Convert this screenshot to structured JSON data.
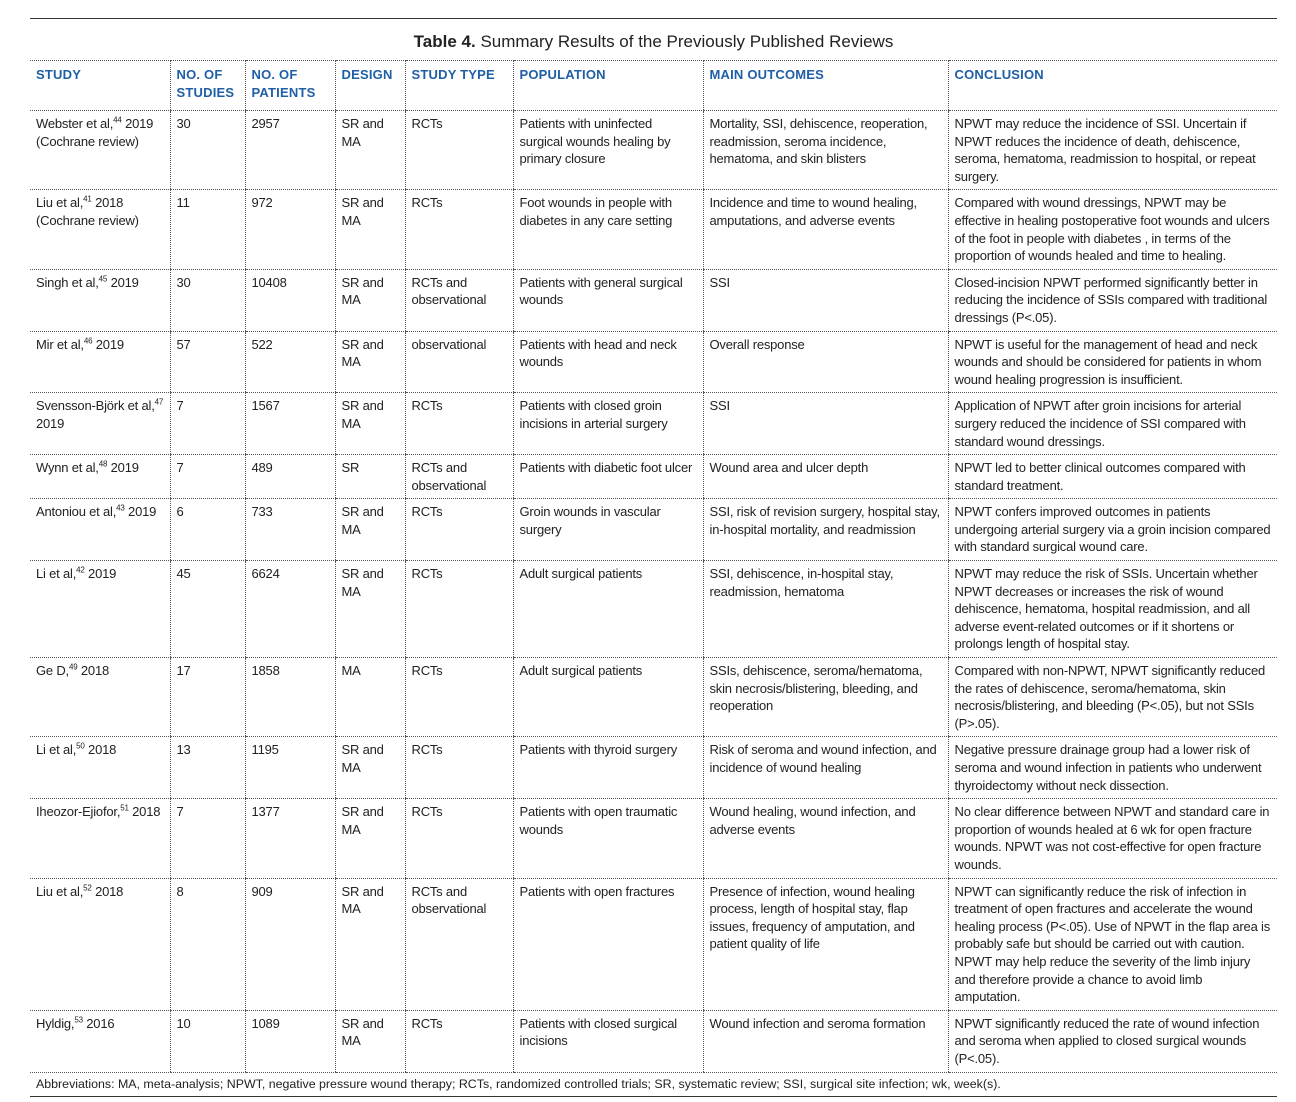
{
  "table": {
    "label": "Table 4.",
    "caption": "Summary Results of the Previously Published Reviews",
    "headers": [
      "STUDY",
      "NO. OF STUDIES",
      "NO. OF PATIENTS",
      "DESIGN",
      "STUDY TYPE",
      "POPULATION",
      "MAIN OUTCOMES",
      "CONCLUSION"
    ],
    "rows": [
      {
        "author": "Webster et al,",
        "ref": "44",
        "year": " 2019",
        "note": "(Cochrane review)",
        "studies": "30",
        "patients": "2957",
        "design": "SR and MA",
        "type": "RCTs",
        "population": "Patients with uninfected surgical wounds healing by primary closure",
        "outcomes": "Mortality, SSI, dehiscence, reoperation, readmission, seroma incidence, hematoma, and skin blisters",
        "conclusion": "NPWT may reduce the incidence of SSI. Uncertain if NPWT reduces the incidence of death, dehiscence, seroma, hematoma, readmission to hospital, or repeat surgery."
      },
      {
        "author": "Liu et al,",
        "ref": "41",
        "year": " 2018",
        "note": "(Cochrane review)",
        "studies": "11",
        "patients": "972",
        "design": "SR and MA",
        "type": "RCTs",
        "population": "Foot wounds in people with diabetes in any care setting",
        "outcomes": "Incidence and time to wound healing, amputations, and adverse events",
        "conclusion": "Compared with wound dressings, NPWT may be effective in healing postoperative foot wounds and ulcers of the foot in people with diabetes , in terms of the proportion of wounds healed and time to healing."
      },
      {
        "author": "Singh et al,",
        "ref": "45",
        "year": " 2019",
        "note": "",
        "studies": "30",
        "patients": "10408",
        "design": "SR and MA",
        "type": "RCTs and observational",
        "population": "Patients with general surgical wounds",
        "outcomes": "SSI",
        "conclusion": "Closed-incision NPWT performed significantly better in reducing the incidence of SSIs compared with traditional dressings (P<.05)."
      },
      {
        "author": "Mir et al,",
        "ref": "46",
        "year": " 2019",
        "note": "",
        "studies": "57",
        "patients": "522",
        "design": "SR and MA",
        "type": "observational",
        "population": "Patients with head and neck wounds",
        "outcomes": "Overall response",
        "conclusion": "NPWT is useful for the management of head and neck wounds and should be considered for patients in whom wound healing progression is insufficient."
      },
      {
        "author": "Svensson-Björk et al,",
        "ref": "47",
        "year": " 2019",
        "note": "",
        "studies": "7",
        "patients": "1567",
        "design": "SR and MA",
        "type": "RCTs",
        "population": "Patients with closed groin incisions in arterial surgery",
        "outcomes": "SSI",
        "conclusion": "Application of NPWT after groin incisions for arterial surgery reduced the incidence of SSI compared with standard wound dressings."
      },
      {
        "author": "Wynn et al,",
        "ref": "48",
        "year": " 2019",
        "note": "",
        "studies": "7",
        "patients": "489",
        "design": "SR",
        "type": "RCTs and observational",
        "population": "Patients with diabetic foot ulcer",
        "outcomes": "Wound area and ulcer depth",
        "conclusion": "NPWT led to better clinical outcomes compared with standard treatment."
      },
      {
        "author": "Antoniou et al,",
        "ref": "43",
        "year": " 2019",
        "note": "",
        "studies": "6",
        "patients": "733",
        "design": "SR and MA",
        "type": "RCTs",
        "population": "Groin wounds in vascular surgery",
        "outcomes": "SSI, risk of revision surgery, hospital stay, in-hospital mortality, and readmission",
        "conclusion": "NPWT confers improved outcomes in patients undergoing arterial surgery via a groin incision compared with standard surgical wound care."
      },
      {
        "author": "Li et al,",
        "ref": "42",
        "year": " 2019",
        "note": "",
        "studies": "45",
        "patients": "6624",
        "design": "SR and MA",
        "type": "RCTs",
        "population": "Adult surgical patients",
        "outcomes": "SSI, dehiscence, in-hospital stay, readmission, hematoma",
        "conclusion": "NPWT may reduce the risk of SSIs. Uncertain whether NPWT decreases or increases the risk of wound dehiscence, hematoma, hospital readmission, and all adverse event-related outcomes or if it shortens or prolongs length of hospital stay."
      },
      {
        "author": "Ge D,",
        "ref": "49",
        "year": " 2018",
        "note": "",
        "studies": "17",
        "patients": "1858",
        "design": "MA",
        "type": "RCTs",
        "population": "Adult surgical patients",
        "outcomes": "SSIs, dehiscence, seroma/hematoma, skin necrosis/blistering, bleeding, and reoperation",
        "conclusion": "Compared with non-NPWT, NPWT significantly reduced the rates of dehiscence, seroma/hematoma, skin necrosis/blistering, and bleeding (P<.05), but not SSIs (P>.05)."
      },
      {
        "author": "Li et al,",
        "ref": "50",
        "year": " 2018",
        "note": "",
        "studies": "13",
        "patients": "1195",
        "design": "SR and MA",
        "type": "RCTs",
        "population": "Patients with thyroid surgery",
        "outcomes": "Risk of seroma and wound infection, and incidence of wound healing",
        "conclusion": "Negative pressure drainage group had a lower risk of seroma and wound infection in patients who underwent thyroidectomy without neck dissection."
      },
      {
        "author": "Iheozor-Ejiofor,",
        "ref": "51",
        "year": " 2018",
        "note": "",
        "studies": "7",
        "patients": "1377",
        "design": "SR and MA",
        "type": "RCTs",
        "population": "Patients with open traumatic wounds",
        "outcomes": "Wound healing, wound infection, and adverse events",
        "conclusion": "No clear difference between NPWT and standard care in proportion of wounds healed at 6 wk for open fracture wounds. NPWT was not cost-effective for open fracture wounds."
      },
      {
        "author": "Liu et al,",
        "ref": "52",
        "year": " 2018",
        "note": "",
        "studies": "8",
        "patients": "909",
        "design": "SR and MA",
        "type": "RCTs and observational",
        "population": "Patients with open fractures",
        "outcomes": "Presence of infection, wound healing process, length of hospital stay, flap issues, frequency of amputation, and patient quality of life",
        "conclusion": "NPWT can significantly reduce the risk of infection in treatment of open fractures and accelerate the wound healing process (P<.05). Use of NPWT in the flap area is probably safe but should be carried out with caution. NPWT may help reduce the severity of the limb injury and therefore provide a chance to avoid limb amputation."
      },
      {
        "author": "Hyldig,",
        "ref": "53",
        "year": " 2016",
        "note": "",
        "studies": "10",
        "patients": "1089",
        "design": "SR and MA",
        "type": "RCTs",
        "population": "Patients with closed surgical incisions",
        "outcomes": "Wound infection and seroma formation",
        "conclusion": "NPWT significantly reduced the rate of wound infection and seroma when applied to closed surgical wounds (P<.05)."
      }
    ],
    "footnote": "Abbreviations: MA, meta-analysis; NPWT, negative pressure wound therapy; RCTs, randomized controlled trials; SR, systematic review; SSI, surgical site infection; wk, week(s)."
  }
}
